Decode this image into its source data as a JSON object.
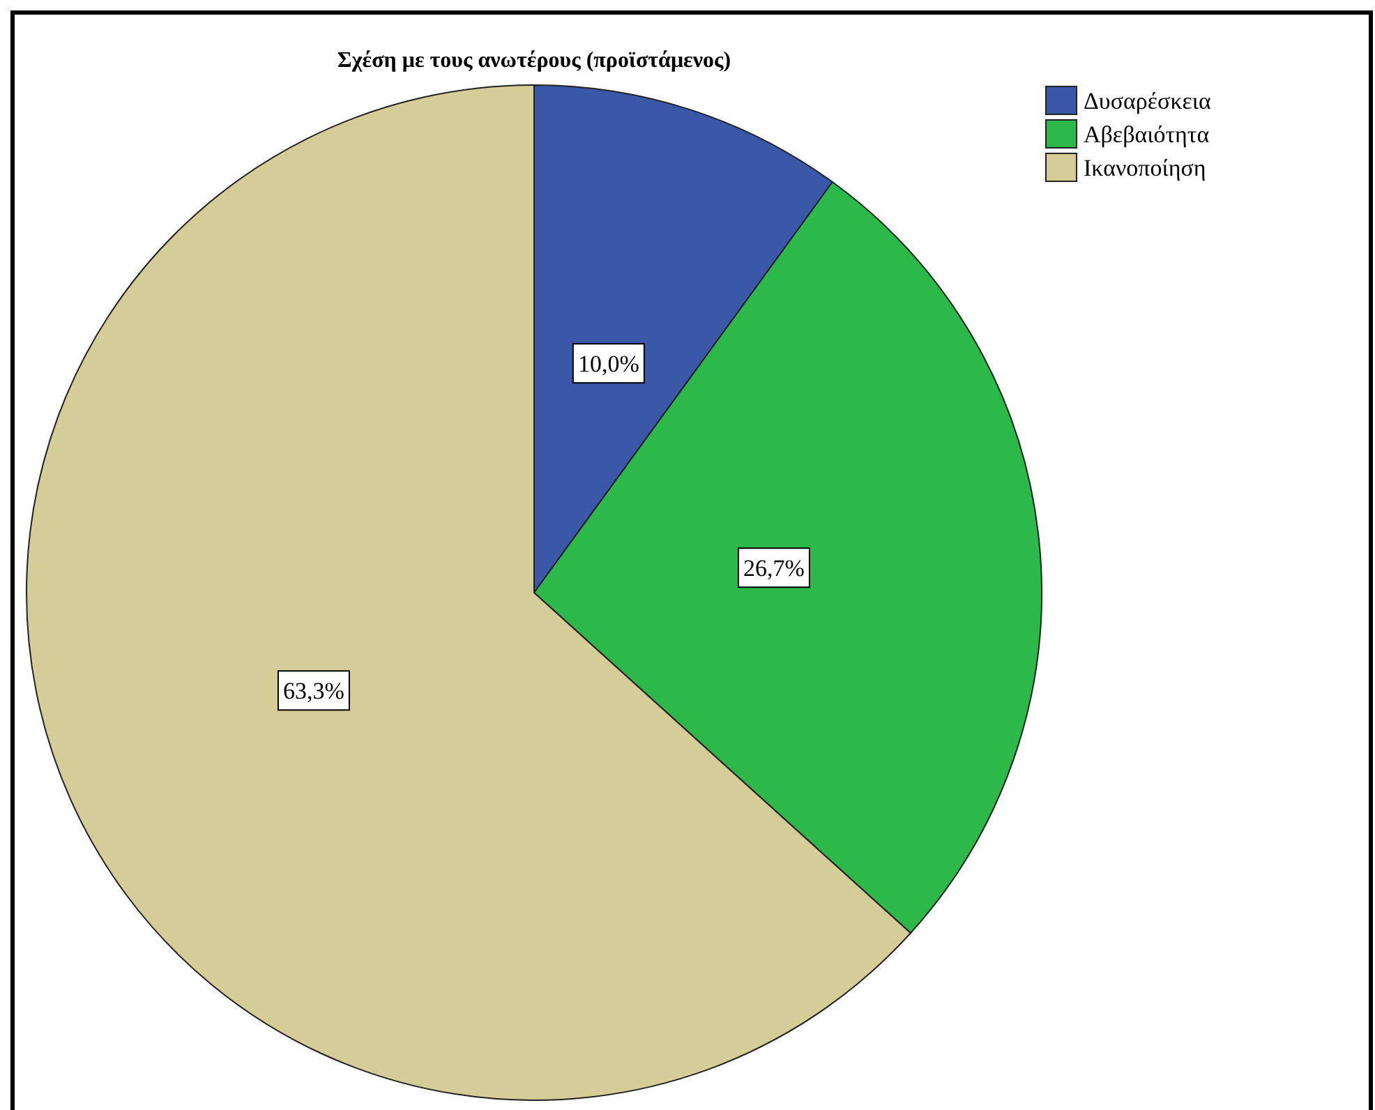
{
  "chart_data": {
    "type": "pie",
    "title": "Σχέση με τους ανωτέρους (προϊστάμενος)",
    "categories": [
      "Δυσαρέσκεια",
      "Αβεβαιότητα",
      "Ικανοποίηση"
    ],
    "values": [
      10.0,
      26.7,
      63.3
    ],
    "colors": [
      "#3a57a8",
      "#2db84a",
      "#d4cd98"
    ],
    "value_labels": [
      "10,0%",
      "26,7%",
      "63,3%"
    ],
    "legend": "top right"
  }
}
